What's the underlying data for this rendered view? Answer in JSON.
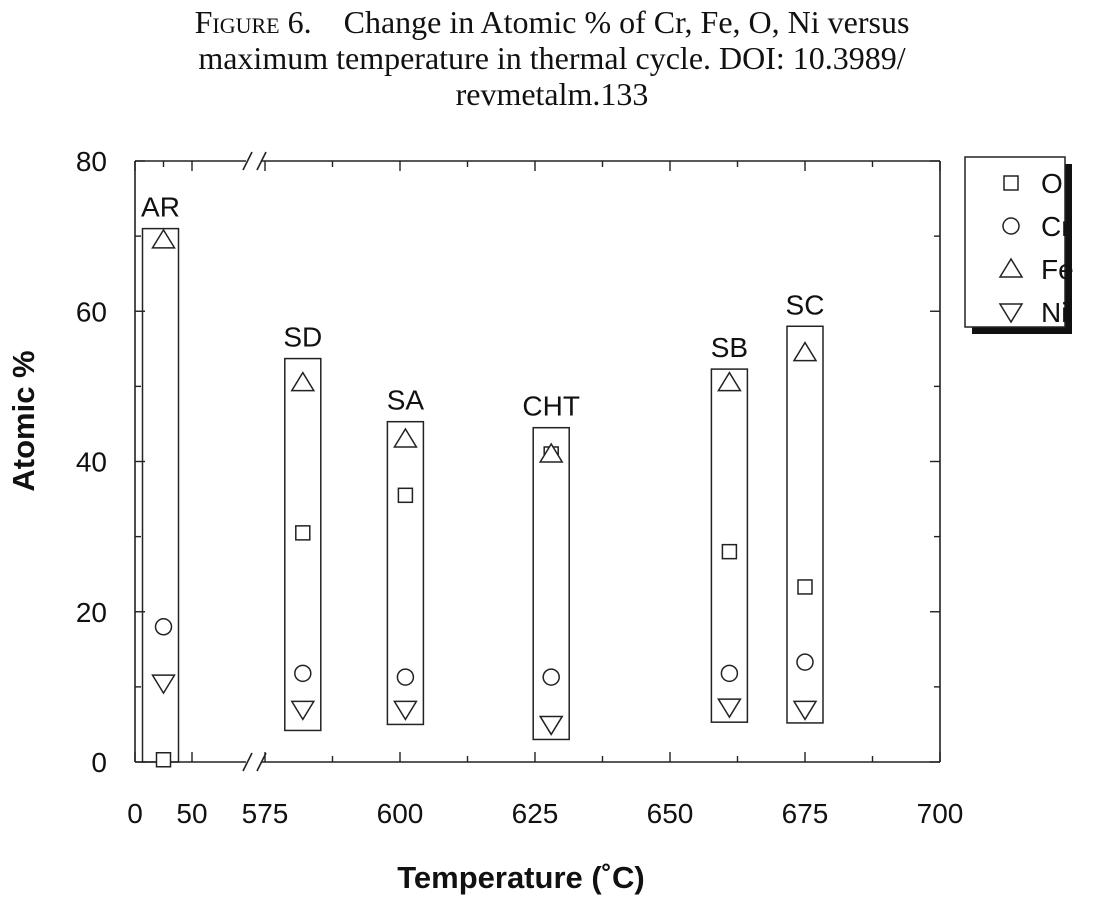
{
  "caption": {
    "figure_label": "Figure 6.",
    "line1": "Change in Atomic % of Cr, Fe, O, Ni versus",
    "line2": "maximum temperature in thermal cycle. DOI: 10.3989/",
    "line3": "revmetalm.133"
  },
  "chart_data": {
    "type": "scatter",
    "xlabel": "Temperature (˚C)",
    "ylabel": "Atomic %",
    "ylim": [
      0,
      80
    ],
    "y_ticks": [
      0,
      20,
      40,
      60,
      80
    ],
    "x_axis": {
      "segment1": {
        "range": [
          0,
          50
        ],
        "tick_labels": [
          "0",
          "50"
        ]
      },
      "segment2": {
        "range": [
          575,
          700
        ],
        "tick_labels": [
          "575",
          "600",
          "625",
          "650",
          "675",
          "700"
        ]
      },
      "axis_break": true
    },
    "legend_position": "outside-right-top",
    "series": [
      {
        "name": "O",
        "marker": "square"
      },
      {
        "name": "Cr",
        "marker": "circle"
      },
      {
        "name": "Fe",
        "marker": "triangle-up"
      },
      {
        "name": "Ni",
        "marker": "triangle-down"
      }
    ],
    "groups": [
      {
        "label": "AR",
        "x": 25,
        "O": 0.3,
        "Cr": 18,
        "Fe": 69.5,
        "Ni": 10.5,
        "box": [
          0,
          71
        ]
      },
      {
        "label": "SD",
        "x": 582,
        "O": 30.5,
        "Cr": 11.8,
        "Fe": 50.5,
        "Ni": 7,
        "box": [
          4.2,
          53.7
        ]
      },
      {
        "label": "SA",
        "x": 601,
        "O": 35.5,
        "Cr": 11.3,
        "Fe": 43,
        "Ni": 7,
        "box": [
          5,
          45.3
        ]
      },
      {
        "label": "CHT",
        "x": 628,
        "O": 41,
        "Cr": 11.3,
        "Fe": 41,
        "Ni": 5,
        "box": [
          3,
          44.5
        ]
      },
      {
        "label": "SB",
        "x": 661,
        "O": 28,
        "Cr": 11.8,
        "Fe": 50.5,
        "Ni": 7.3,
        "box": [
          5.3,
          52.3
        ]
      },
      {
        "label": "SC",
        "x": 675,
        "O": 23.3,
        "Cr": 13.3,
        "Fe": 54.5,
        "Ni": 7,
        "box": [
          5.2,
          58
        ]
      }
    ]
  }
}
